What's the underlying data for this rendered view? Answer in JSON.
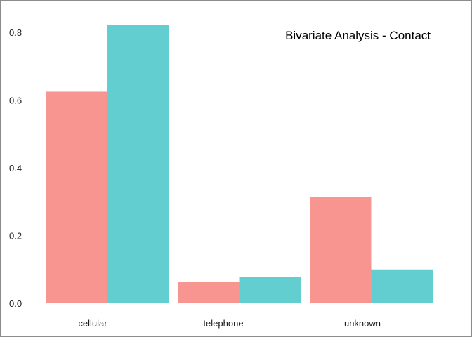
{
  "chart_data": {
    "type": "bar",
    "title": "Bivariate Analysis - Contact",
    "xlabel": "",
    "ylabel": "",
    "categories": [
      "cellular",
      "telephone",
      "unknown"
    ],
    "series": [
      {
        "color": "#f89591",
        "values": [
          0.625,
          0.063,
          0.313
        ]
      },
      {
        "color": "#63ced0",
        "values": [
          0.822,
          0.078,
          0.1
        ]
      }
    ],
    "ylim": [
      0,
      0.8
    ],
    "yticks": [
      0.0,
      0.2,
      0.4,
      0.6,
      0.8
    ],
    "ytick_labels": [
      "0.0",
      "0.2",
      "0.4",
      "0.6",
      "0.8"
    ],
    "grid": false,
    "legend": "none",
    "title_placement": "inside top-right"
  }
}
